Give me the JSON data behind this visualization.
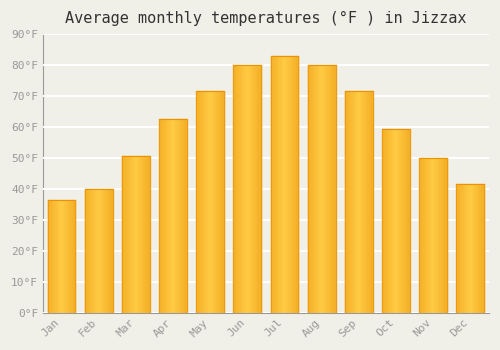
{
  "title": "Average monthly temperatures (°F ) in Jizzax",
  "months": [
    "Jan",
    "Feb",
    "Mar",
    "Apr",
    "May",
    "Jun",
    "Jul",
    "Aug",
    "Sep",
    "Oct",
    "Nov",
    "Dec"
  ],
  "values": [
    36.5,
    40.0,
    50.5,
    62.5,
    71.5,
    80.0,
    83.0,
    80.0,
    71.5,
    59.5,
    50.0,
    41.5
  ],
  "bar_color_light": "#FFCC44",
  "bar_color_mid": "#FFA500",
  "bar_color_dark": "#E8920A",
  "ylim": [
    0,
    90
  ],
  "ytick_step": 10,
  "background_color": "#F0EFE8",
  "plot_bg_color": "#F0EFE8",
  "grid_color": "#FFFFFF",
  "title_fontsize": 11,
  "tick_fontsize": 8,
  "tick_color": "#999999",
  "title_color": "#333333",
  "font_family": "monospace"
}
